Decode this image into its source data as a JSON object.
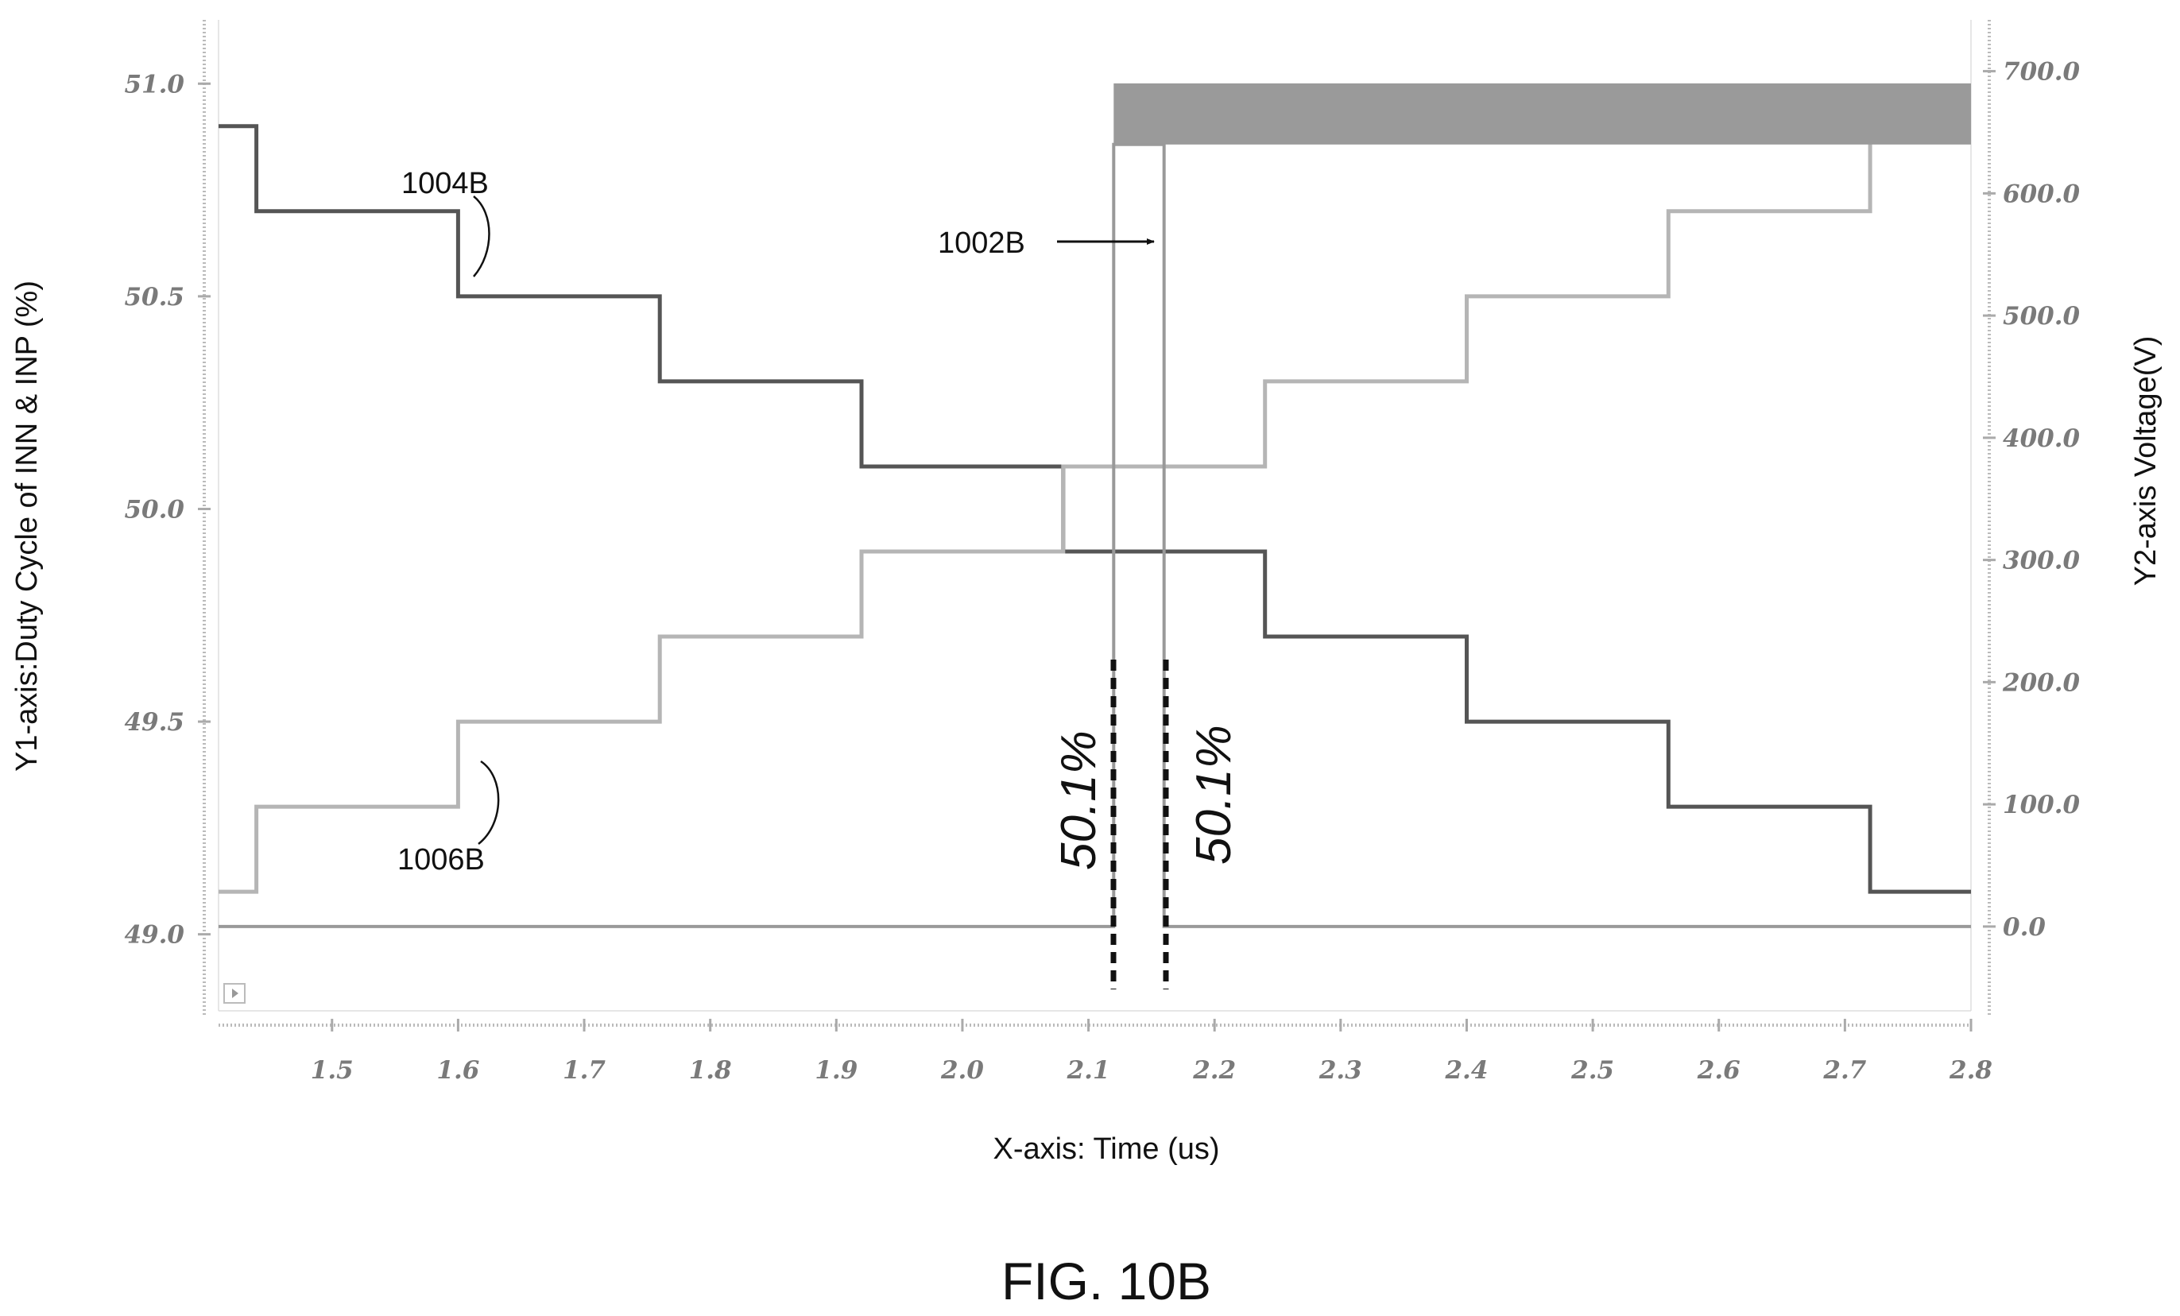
{
  "figure_label": "FIG. 10B",
  "chart_data": {
    "type": "line",
    "xlabel": "X-axis: Time (us)",
    "ylabel": "Y1-axis:Duty Cycle of INN & INP  (%)",
    "y2label": "Y2-axis Voltage(V)",
    "xlim": [
      1.41,
      2.8
    ],
    "ylim": [
      48.82,
      51.15
    ],
    "y2lim": [
      -69,
      742
    ],
    "x_ticks": [
      1.5,
      1.6,
      1.7,
      1.8,
      1.9,
      2.0,
      2.1,
      2.2,
      2.3,
      2.4,
      2.5,
      2.6,
      2.7,
      2.8
    ],
    "x_tick_labels": [
      "1.5",
      "1.6",
      "1.7",
      "1.8",
      "1.9",
      "2.0",
      "2.1",
      "2.2",
      "2.3",
      "2.4",
      "2.5",
      "2.6",
      "2.7",
      "2.8"
    ],
    "y_ticks": [
      49.0,
      49.5,
      50.0,
      50.5,
      51.0
    ],
    "y_tick_labels": [
      "49.0",
      "49.5",
      "50.0",
      "50.5",
      "51.0"
    ],
    "y2_ticks": [
      0,
      100,
      200,
      300,
      400,
      500,
      600,
      700
    ],
    "y2_tick_labels": [
      "0.0",
      "100.0",
      "200.0",
      "300.0",
      "400.0",
      "500.0",
      "600.0",
      "700.0"
    ],
    "grid": false,
    "series": [
      {
        "name": "1004B",
        "axis": "y1",
        "color": "#555555",
        "x": [
          1.41,
          1.44,
          1.44,
          1.6,
          1.6,
          1.76,
          1.76,
          1.92,
          1.92,
          2.08,
          2.08,
          2.24,
          2.24,
          2.4,
          2.4,
          2.56,
          2.56,
          2.72,
          2.72,
          2.8
        ],
        "y": [
          50.9,
          50.9,
          50.7,
          50.7,
          50.5,
          50.5,
          50.3,
          50.3,
          50.1,
          50.1,
          49.9,
          49.9,
          49.7,
          49.7,
          49.5,
          49.5,
          49.3,
          49.3,
          49.1,
          49.1
        ]
      },
      {
        "name": "1006B",
        "axis": "y1",
        "color": "#b5b5b5",
        "x": [
          1.41,
          1.44,
          1.44,
          1.6,
          1.6,
          1.76,
          1.76,
          1.92,
          1.92,
          2.08,
          2.08,
          2.24,
          2.24,
          2.4,
          2.4,
          2.56,
          2.56,
          2.72,
          2.72,
          2.8
        ],
        "y": [
          49.1,
          49.1,
          49.3,
          49.3,
          49.5,
          49.5,
          49.7,
          49.7,
          49.9,
          49.9,
          50.1,
          50.1,
          50.3,
          50.3,
          50.5,
          50.5,
          50.7,
          50.7,
          50.9,
          50.9
        ]
      },
      {
        "name": "1002B",
        "axis": "y2",
        "color": "#999999",
        "x": [
          1.41,
          2.12,
          2.12,
          2.16,
          2.16,
          2.8
        ],
        "y": [
          0,
          0,
          640,
          640,
          0,
          0
        ],
        "band": {
          "x": [
            2.12,
            2.8
          ],
          "y": [
            640,
            690
          ]
        }
      }
    ],
    "annotations": [
      {
        "text": "1004B",
        "x": 1.6,
        "y": 50.7
      },
      {
        "text": "1006B",
        "x": 1.6,
        "y": 49.3
      },
      {
        "text": "1002B",
        "x": 2.16,
        "y2": 560
      },
      {
        "text": "50.1%",
        "x": 2.12
      },
      {
        "text": "50.1%",
        "x": 2.16
      }
    ]
  }
}
